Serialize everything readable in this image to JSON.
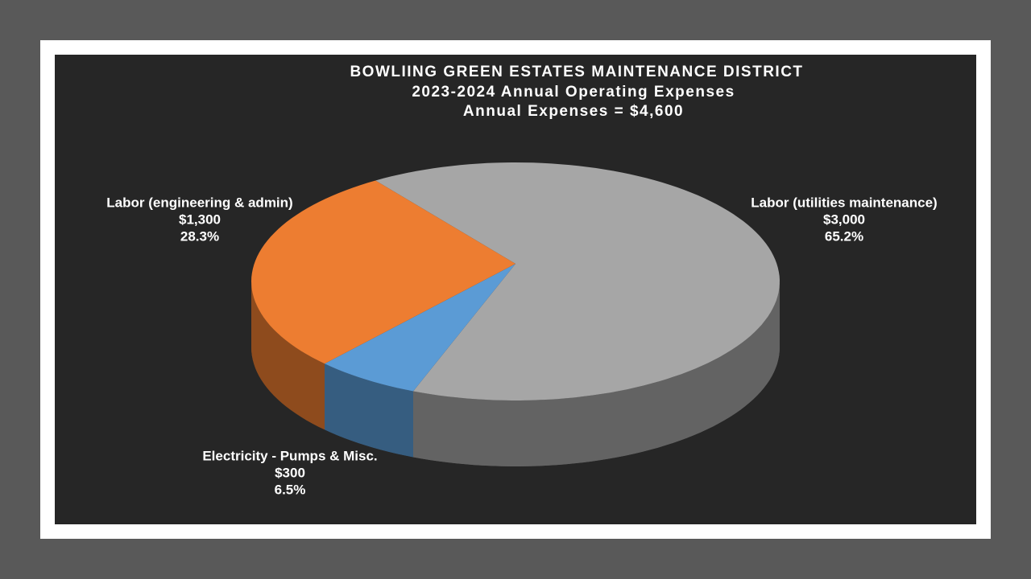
{
  "chart_data": {
    "type": "pie3d",
    "title": "BOWLIING GREEN ESTATES MAINTENANCE DISTRICT",
    "subtitle": [
      "2023-2024 Annual Operating Expenses",
      "Annual Expenses = $4,600"
    ],
    "categories": [
      "Labor (utilities maintenance)",
      "Electricity - Pumps & Misc.",
      "Labor (engineering & admin)"
    ],
    "values": [
      3000,
      300,
      1300
    ],
    "value_labels": [
      "$3,000",
      "$300",
      "$1,300"
    ],
    "percent_labels": [
      "65.2%",
      "6.5%",
      "28.3%"
    ],
    "colors": [
      "#a6a6a6",
      "#5b9bd5",
      "#ed7d31"
    ]
  }
}
